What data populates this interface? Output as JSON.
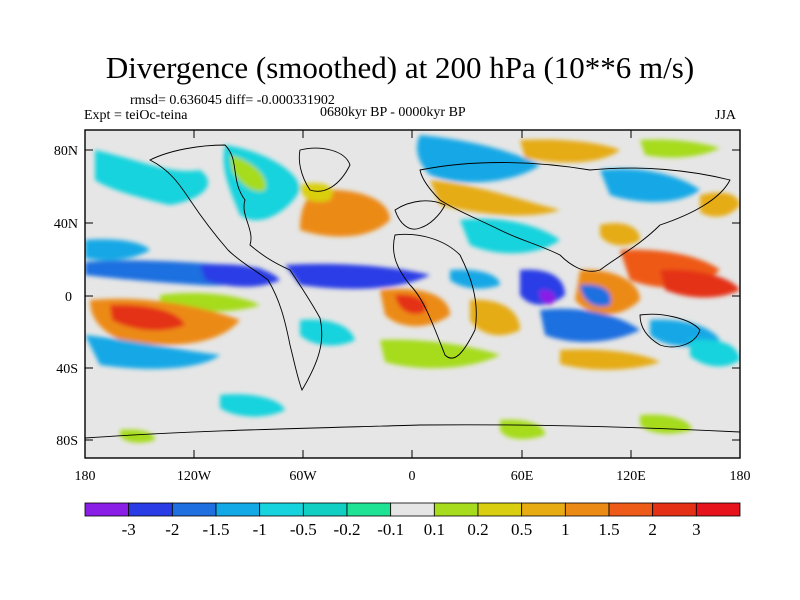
{
  "figure": {
    "title": "Divergence (smoothed) at 200 hPa (10**6 m/s)",
    "stats": "rmsd= 0.636045 diff= -0.000331902",
    "experiment": "Expt = teiOc-teina",
    "period": "0680kyr BP - 0000kyr BP",
    "season": "JJA"
  },
  "axes": {
    "y_ticks": [
      "80N",
      "40N",
      "0",
      "40S",
      "80S"
    ],
    "x_ticks": [
      "180",
      "120W",
      "60W",
      "0",
      "60E",
      "120E",
      "180"
    ]
  },
  "colorbar": {
    "labels": [
      "-3",
      "-2",
      "-1.5",
      "-1",
      "-0.5",
      "-0.2",
      "-0.1",
      "0.1",
      "0.2",
      "0.5",
      "1",
      "1.5",
      "2",
      "3"
    ],
    "colors": [
      "#8a1ee6",
      "#2a3ce6",
      "#1f6fe0",
      "#13a8e6",
      "#16d3dd",
      "#11cfc2",
      "#1ee394",
      "#e6e6e6",
      "#a6dc1c",
      "#d9cf10",
      "#e6ac12",
      "#ec8a16",
      "#ee5a18",
      "#e43014",
      "#e6121c"
    ]
  }
}
